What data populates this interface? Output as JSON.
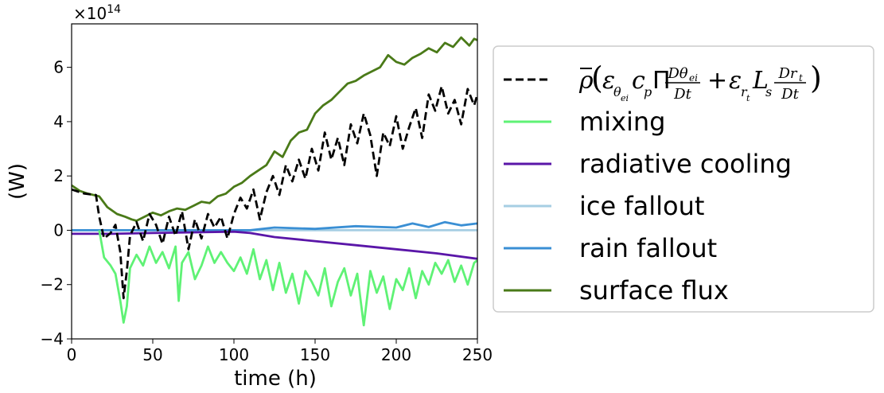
{
  "chart_data": {
    "type": "line",
    "xlabel": "time (h)",
    "ylabel": "(W)",
    "y_multiplier": "×10",
    "y_multiplier_exp": "14",
    "xlim": [
      0,
      250
    ],
    "ylim": [
      -4.0,
      7.6
    ],
    "xticks": [
      0,
      50,
      100,
      150,
      200,
      250
    ],
    "yticks": [
      -4,
      -2,
      0,
      2,
      4,
      6
    ],
    "grid": false,
    "legend_placement": "right, outside plot",
    "zero_line": true,
    "series": [
      {
        "name": "ρ̄(ε_θei c_p Π Dθ_ei/Dt + ε_rt L_s Dr_t/Dt)",
        "color": "#000000",
        "dashed": true,
        "points": [
          [
            0,
            1.5
          ],
          [
            8,
            1.35
          ],
          [
            15,
            1.3
          ],
          [
            17,
            0.5
          ],
          [
            20,
            -0.3
          ],
          [
            24,
            -0.1
          ],
          [
            27,
            0.2
          ],
          [
            30,
            -0.8
          ],
          [
            32,
            -2.5
          ],
          [
            34,
            -1.5
          ],
          [
            36,
            -0.2
          ],
          [
            40,
            0.3
          ],
          [
            44,
            -0.4
          ],
          [
            48,
            0.6
          ],
          [
            52,
            0.2
          ],
          [
            56,
            -0.5
          ],
          [
            60,
            0.5
          ],
          [
            64,
            -0.2
          ],
          [
            68,
            0.7
          ],
          [
            72,
            -0.7
          ],
          [
            76,
            0.4
          ],
          [
            80,
            -0.3
          ],
          [
            84,
            0.6
          ],
          [
            88,
            0.1
          ],
          [
            92,
            0.5
          ],
          [
            96,
            -0.3
          ],
          [
            100,
            0.6
          ],
          [
            104,
            1.2
          ],
          [
            108,
            0.8
          ],
          [
            112,
            1.5
          ],
          [
            116,
            0.4
          ],
          [
            120,
            1.4
          ],
          [
            124,
            2.0
          ],
          [
            128,
            1.3
          ],
          [
            132,
            2.4
          ],
          [
            136,
            1.8
          ],
          [
            140,
            2.6
          ],
          [
            144,
            1.9
          ],
          [
            148,
            3.0
          ],
          [
            152,
            2.2
          ],
          [
            156,
            3.6
          ],
          [
            160,
            2.6
          ],
          [
            164,
            3.4
          ],
          [
            168,
            2.4
          ],
          [
            172,
            3.9
          ],
          [
            176,
            3.2
          ],
          [
            180,
            4.3
          ],
          [
            184,
            3.5
          ],
          [
            188,
            2.0
          ],
          [
            192,
            3.6
          ],
          [
            196,
            3.1
          ],
          [
            200,
            4.2
          ],
          [
            204,
            3.0
          ],
          [
            208,
            3.8
          ],
          [
            212,
            4.5
          ],
          [
            216,
            3.4
          ],
          [
            220,
            5.0
          ],
          [
            224,
            4.4
          ],
          [
            228,
            5.3
          ],
          [
            232,
            4.3
          ],
          [
            236,
            4.8
          ],
          [
            240,
            3.9
          ],
          [
            244,
            5.2
          ],
          [
            248,
            4.6
          ],
          [
            250,
            5.0
          ]
        ]
      },
      {
        "name": "mixing",
        "color": "#5ff275",
        "dashed": false,
        "points": [
          [
            17,
            0.0
          ],
          [
            20,
            -1.0
          ],
          [
            24,
            -1.3
          ],
          [
            27,
            -1.6
          ],
          [
            30,
            -2.6
          ],
          [
            32,
            -3.4
          ],
          [
            34,
            -2.8
          ],
          [
            36,
            -1.4
          ],
          [
            40,
            -0.9
          ],
          [
            44,
            -1.3
          ],
          [
            48,
            -0.6
          ],
          [
            52,
            -1.2
          ],
          [
            56,
            -0.8
          ],
          [
            60,
            -1.4
          ],
          [
            64,
            -0.6
          ],
          [
            66,
            -2.6
          ],
          [
            68,
            -1.2
          ],
          [
            72,
            -0.8
          ],
          [
            76,
            -1.8
          ],
          [
            80,
            -1.3
          ],
          [
            84,
            -0.6
          ],
          [
            88,
            -1.2
          ],
          [
            92,
            -0.8
          ],
          [
            96,
            -1.2
          ],
          [
            100,
            -1.5
          ],
          [
            104,
            -1.0
          ],
          [
            108,
            -1.6
          ],
          [
            112,
            -0.7
          ],
          [
            116,
            -1.8
          ],
          [
            120,
            -1.1
          ],
          [
            124,
            -2.2
          ],
          [
            128,
            -1.2
          ],
          [
            132,
            -2.3
          ],
          [
            136,
            -1.6
          ],
          [
            140,
            -2.7
          ],
          [
            144,
            -1.5
          ],
          [
            148,
            -1.9
          ],
          [
            152,
            -2.4
          ],
          [
            156,
            -1.4
          ],
          [
            160,
            -2.8
          ],
          [
            164,
            -1.9
          ],
          [
            168,
            -1.4
          ],
          [
            172,
            -2.4
          ],
          [
            176,
            -1.6
          ],
          [
            180,
            -3.5
          ],
          [
            184,
            -1.5
          ],
          [
            188,
            -2.3
          ],
          [
            192,
            -1.7
          ],
          [
            196,
            -2.9
          ],
          [
            200,
            -1.8
          ],
          [
            204,
            -2.2
          ],
          [
            208,
            -1.4
          ],
          [
            212,
            -2.5
          ],
          [
            216,
            -1.5
          ],
          [
            220,
            -2.0
          ],
          [
            224,
            -1.2
          ],
          [
            228,
            -1.6
          ],
          [
            232,
            -1.1
          ],
          [
            236,
            -1.9
          ],
          [
            240,
            -1.3
          ],
          [
            244,
            -2.0
          ],
          [
            248,
            -1.2
          ],
          [
            250,
            -1.1
          ]
        ]
      },
      {
        "name": "radiative cooling",
        "color": "#5a16a8",
        "dashed": false,
        "points": [
          [
            0,
            -0.13
          ],
          [
            25,
            -0.13
          ],
          [
            50,
            -0.1
          ],
          [
            100,
            -0.05
          ],
          [
            110,
            -0.1
          ],
          [
            125,
            -0.25
          ],
          [
            150,
            -0.4
          ],
          [
            175,
            -0.55
          ],
          [
            200,
            -0.7
          ],
          [
            225,
            -0.85
          ],
          [
            250,
            -1.05
          ]
        ]
      },
      {
        "name": "ice fallout",
        "color": "#a6cee3",
        "dashed": false,
        "points": [
          [
            0,
            0.0
          ],
          [
            250,
            0.0
          ]
        ]
      },
      {
        "name": "rain fallout",
        "color": "#3a8fd4",
        "dashed": false,
        "points": [
          [
            0,
            0.0
          ],
          [
            110,
            0.0
          ],
          [
            125,
            0.1
          ],
          [
            150,
            0.05
          ],
          [
            175,
            0.15
          ],
          [
            200,
            0.1
          ],
          [
            210,
            0.25
          ],
          [
            220,
            0.12
          ],
          [
            230,
            0.3
          ],
          [
            240,
            0.18
          ],
          [
            250,
            0.25
          ]
        ]
      },
      {
        "name": "surface flux",
        "color": "#4a7a18",
        "dashed": false,
        "points": [
          [
            0,
            1.65
          ],
          [
            5,
            1.45
          ],
          [
            10,
            1.35
          ],
          [
            17,
            1.25
          ],
          [
            22,
            0.85
          ],
          [
            28,
            0.6
          ],
          [
            33,
            0.5
          ],
          [
            37,
            0.4
          ],
          [
            40,
            0.35
          ],
          [
            45,
            0.5
          ],
          [
            50,
            0.65
          ],
          [
            55,
            0.55
          ],
          [
            60,
            0.7
          ],
          [
            65,
            0.8
          ],
          [
            70,
            0.75
          ],
          [
            75,
            0.9
          ],
          [
            80,
            1.05
          ],
          [
            85,
            1.0
          ],
          [
            90,
            1.25
          ],
          [
            95,
            1.35
          ],
          [
            100,
            1.6
          ],
          [
            105,
            1.75
          ],
          [
            110,
            2.0
          ],
          [
            115,
            2.2
          ],
          [
            120,
            2.4
          ],
          [
            125,
            2.9
          ],
          [
            130,
            2.7
          ],
          [
            135,
            3.3
          ],
          [
            140,
            3.6
          ],
          [
            145,
            3.7
          ],
          [
            150,
            4.3
          ],
          [
            155,
            4.6
          ],
          [
            160,
            4.8
          ],
          [
            165,
            5.1
          ],
          [
            170,
            5.4
          ],
          [
            175,
            5.5
          ],
          [
            180,
            5.7
          ],
          [
            185,
            5.85
          ],
          [
            190,
            6.0
          ],
          [
            195,
            6.45
          ],
          [
            200,
            6.2
          ],
          [
            205,
            6.1
          ],
          [
            210,
            6.35
          ],
          [
            215,
            6.5
          ],
          [
            220,
            6.7
          ],
          [
            225,
            6.55
          ],
          [
            230,
            6.9
          ],
          [
            235,
            6.75
          ],
          [
            240,
            7.1
          ],
          [
            245,
            6.8
          ],
          [
            248,
            7.05
          ],
          [
            250,
            7.0
          ]
        ]
      }
    ]
  }
}
